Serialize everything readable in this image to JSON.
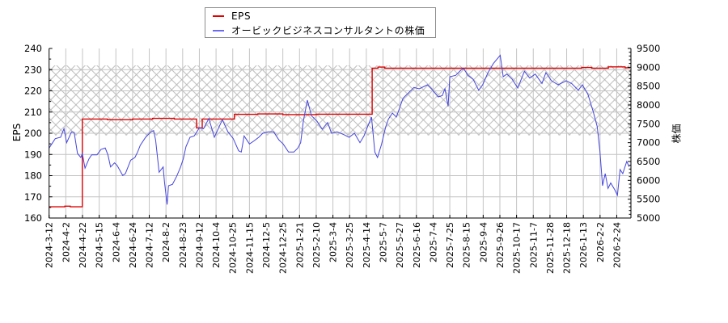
{
  "legend": {
    "items": [
      {
        "label": "EPS",
        "color": "#e00000"
      },
      {
        "label": "オービックビジネスコンサルタントの株価",
        "color": "#6b6bf0"
      }
    ]
  },
  "axes": {
    "left_label": "EPS",
    "right_label": "株価"
  },
  "chart_data": {
    "type": "line",
    "title": "",
    "xlabel": "",
    "x_tick_labels": [
      "2024-3-12",
      "2024-4-2",
      "2024-4-22",
      "2024-5-15",
      "2024-6-4",
      "2024-6-24",
      "2024-7-12",
      "2024-8-2",
      "2024-8-23",
      "2024-9-12",
      "2024-10-4",
      "2024-10-25",
      "2024-11-15",
      "2024-12-5",
      "2024-12-25",
      "2025-1-21",
      "2025-2-10",
      "2025-3-4",
      "2025-3-25",
      "2025-4-14",
      "2025-5-7",
      "2025-5-27",
      "2025-6-16",
      "2025-7-4",
      "2025-7-25",
      "2025-8-15",
      "2025-9-4",
      "2025-9-26",
      "2025-10-17",
      "2025-11-7",
      "2025-11-28",
      "2025-12-18",
      "2026-1-13",
      "2026-2-2",
      "2026-2-24"
    ],
    "x_index_note": "point x = position in tick-label index units (0 = 2024-3-12, 34 = 2026-2-24)",
    "left_axis": {
      "label": "EPS",
      "ylim": [
        160,
        240
      ],
      "ticks": [
        160,
        170,
        180,
        190,
        200,
        210,
        220,
        230,
        240
      ],
      "minor_step": 5
    },
    "right_axis": {
      "label": "株価",
      "ylim": [
        5000,
        9500
      ],
      "ticks": [
        5000,
        5500,
        6000,
        6500,
        7000,
        7500,
        8000,
        8500,
        9000,
        9500
      ],
      "minor_step": 100
    },
    "grid": true,
    "legend_position": "top-center",
    "shaded_band": {
      "axis": "left",
      "from": 199,
      "to": 232,
      "pattern": "crosshatch",
      "color": "#b4b4b4"
    },
    "series": [
      {
        "name": "EPS",
        "axis": "left",
        "color": "#dd0000",
        "width": 1.4,
        "points": [
          [
            0,
            165.3
          ],
          [
            0.94,
            165.3
          ],
          [
            0.94,
            165.6
          ],
          [
            1.27,
            165.6
          ],
          [
            1.27,
            165.3
          ],
          [
            1.99,
            165.3
          ],
          [
            1.99,
            206.7
          ],
          [
            3.5,
            206.7
          ],
          [
            3.5,
            206.4
          ],
          [
            5.0,
            206.4
          ],
          [
            5.0,
            206.7
          ],
          [
            6.2,
            206.7
          ],
          [
            6.2,
            207.0
          ],
          [
            7.5,
            207.0
          ],
          [
            7.5,
            206.7
          ],
          [
            8.83,
            206.7
          ],
          [
            8.83,
            202.5
          ],
          [
            9.17,
            202.5
          ],
          [
            9.17,
            206.7
          ],
          [
            11.1,
            206.7
          ],
          [
            11.1,
            208.9
          ],
          [
            12.5,
            208.9
          ],
          [
            12.5,
            209.1
          ],
          [
            14.0,
            209.1
          ],
          [
            14.0,
            208.8
          ],
          [
            16.0,
            208.8
          ],
          [
            16.0,
            209.0
          ],
          [
            19.35,
            209.0
          ],
          [
            19.35,
            230.7
          ],
          [
            19.7,
            230.7
          ],
          [
            19.7,
            231.2
          ],
          [
            20.1,
            231.2
          ],
          [
            20.1,
            230.7
          ],
          [
            31.9,
            230.7
          ],
          [
            31.9,
            231.0
          ],
          [
            32.5,
            231.0
          ],
          [
            32.5,
            230.7
          ],
          [
            33.5,
            230.7
          ],
          [
            33.5,
            231.3
          ],
          [
            34.5,
            231.3
          ],
          [
            34.5,
            230.9
          ],
          [
            34.8,
            230.9
          ]
        ]
      },
      {
        "name": "オービックビジネスコンサルタントの株価",
        "axis": "right",
        "color": "#4444dd",
        "width": 1,
        "points": [
          [
            0.0,
            6857
          ],
          [
            0.37,
            7107
          ],
          [
            0.69,
            7143
          ],
          [
            0.89,
            7372
          ],
          [
            1.05,
            7000
          ],
          [
            1.34,
            7286
          ],
          [
            1.5,
            7271
          ],
          [
            1.7,
            6714
          ],
          [
            1.9,
            6607
          ],
          [
            1.99,
            6714
          ],
          [
            2.15,
            6322
          ],
          [
            2.39,
            6571
          ],
          [
            2.55,
            6678
          ],
          [
            2.87,
            6678
          ],
          [
            3.11,
            6821
          ],
          [
            3.36,
            6857
          ],
          [
            3.52,
            6678
          ],
          [
            3.68,
            6357
          ],
          [
            3.92,
            6464
          ],
          [
            4.08,
            6393
          ],
          [
            4.41,
            6129
          ],
          [
            4.57,
            6179
          ],
          [
            4.89,
            6536
          ],
          [
            5.14,
            6607
          ],
          [
            5.3,
            6750
          ],
          [
            5.46,
            6929
          ],
          [
            5.78,
            7143
          ],
          [
            6.1,
            7286
          ],
          [
            6.26,
            7321
          ],
          [
            6.38,
            7071
          ],
          [
            6.59,
            6214
          ],
          [
            6.83,
            6357
          ],
          [
            6.91,
            5964
          ],
          [
            7.07,
            5357
          ],
          [
            7.15,
            5857
          ],
          [
            7.39,
            5893
          ],
          [
            7.64,
            6107
          ],
          [
            7.88,
            6357
          ],
          [
            8.04,
            6571
          ],
          [
            8.2,
            6893
          ],
          [
            8.44,
            7143
          ],
          [
            8.69,
            7180
          ],
          [
            9.01,
            7400
          ],
          [
            9.25,
            7370
          ],
          [
            9.57,
            7643
          ],
          [
            9.9,
            7143
          ],
          [
            10.38,
            7607
          ],
          [
            10.71,
            7286
          ],
          [
            11.03,
            7107
          ],
          [
            11.35,
            6786
          ],
          [
            11.51,
            6750
          ],
          [
            11.68,
            7179
          ],
          [
            12.0,
            6964
          ],
          [
            12.24,
            7036
          ],
          [
            12.56,
            7143
          ],
          [
            12.8,
            7250
          ],
          [
            13.13,
            7286
          ],
          [
            13.45,
            7286
          ],
          [
            13.77,
            7071
          ],
          [
            14.02,
            6964
          ],
          [
            14.34,
            6750
          ],
          [
            14.66,
            6750
          ],
          [
            14.9,
            6857
          ],
          [
            15.07,
            7000
          ],
          [
            15.23,
            7571
          ],
          [
            15.47,
            8129
          ],
          [
            15.71,
            7714
          ],
          [
            16.04,
            7571
          ],
          [
            16.36,
            7357
          ],
          [
            16.68,
            7536
          ],
          [
            16.92,
            7250
          ],
          [
            17.25,
            7286
          ],
          [
            17.65,
            7214
          ],
          [
            17.97,
            7143
          ],
          [
            18.29,
            7250
          ],
          [
            18.62,
            7000
          ],
          [
            18.86,
            7179
          ],
          [
            19.1,
            7450
          ],
          [
            19.31,
            7679
          ],
          [
            19.51,
            6750
          ],
          [
            19.67,
            6607
          ],
          [
            19.91,
            6950
          ],
          [
            20.16,
            7420
          ],
          [
            20.32,
            7620
          ],
          [
            20.56,
            7786
          ],
          [
            20.8,
            7679
          ],
          [
            21.2,
            8179
          ],
          [
            21.53,
            8321
          ],
          [
            21.85,
            8464
          ],
          [
            22.17,
            8429
          ],
          [
            22.66,
            8536
          ],
          [
            22.9,
            8429
          ],
          [
            23.31,
            8214
          ],
          [
            23.55,
            8250
          ],
          [
            23.71,
            8429
          ],
          [
            23.9,
            7964
          ],
          [
            24.0,
            8750
          ],
          [
            24.35,
            8786
          ],
          [
            24.68,
            8929
          ],
          [
            24.84,
            8964
          ],
          [
            25.08,
            8786
          ],
          [
            25.4,
            8679
          ],
          [
            25.73,
            8393
          ],
          [
            25.97,
            8536
          ],
          [
            26.29,
            8857
          ],
          [
            26.61,
            9100
          ],
          [
            27.02,
            9321
          ],
          [
            27.2,
            8750
          ],
          [
            27.42,
            8821
          ],
          [
            27.74,
            8679
          ],
          [
            28.07,
            8450
          ],
          [
            28.47,
            8893
          ],
          [
            28.79,
            8714
          ],
          [
            29.12,
            8821
          ],
          [
            29.52,
            8571
          ],
          [
            29.76,
            8857
          ],
          [
            30.09,
            8643
          ],
          [
            30.49,
            8536
          ],
          [
            30.98,
            8643
          ],
          [
            31.3,
            8571
          ],
          [
            31.7,
            8393
          ],
          [
            31.94,
            8536
          ],
          [
            32.27,
            8286
          ],
          [
            32.59,
            7821
          ],
          [
            32.83,
            7428
          ],
          [
            32.99,
            6786
          ],
          [
            33.15,
            5857
          ],
          [
            33.31,
            6179
          ],
          [
            33.48,
            5786
          ],
          [
            33.64,
            5929
          ],
          [
            33.88,
            5750
          ],
          [
            34.04,
            5607
          ],
          [
            34.2,
            6286
          ],
          [
            34.36,
            6179
          ],
          [
            34.6,
            6500
          ],
          [
            34.75,
            6357
          ]
        ]
      }
    ]
  }
}
